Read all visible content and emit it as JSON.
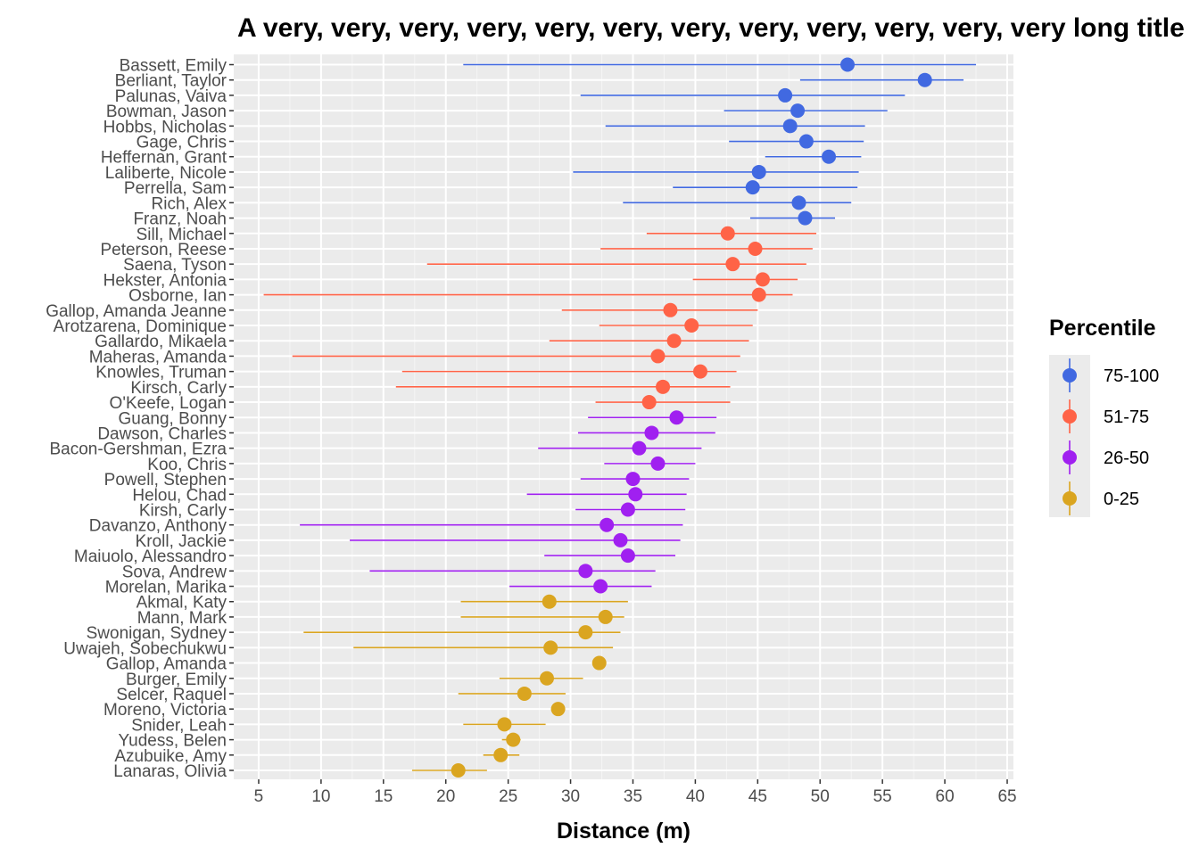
{
  "chart_data": {
    "type": "scatter",
    "title": "A very, very, very, very, very, very, very, very, very, very, very, very long title",
    "xlabel": "Distance (m)",
    "ylabel": "",
    "xlim": [
      3.0,
      65.5
    ],
    "xticks": [
      5,
      10,
      15,
      20,
      25,
      30,
      35,
      40,
      45,
      50,
      55,
      60,
      65
    ],
    "grid": true,
    "legend": {
      "title": "Percentile",
      "position": "right",
      "entries": [
        {
          "label": "75-100",
          "color": "#4169e1"
        },
        {
          "label": "51-75",
          "color": "#ff6347"
        },
        {
          "label": "26-50",
          "color": "#a020f0"
        },
        {
          "label": "0-25",
          "color": "#daa520"
        }
      ]
    },
    "points": [
      {
        "name": "Bassett, Emily",
        "group": "75-100",
        "value": 52.2,
        "low": 21.4,
        "high": 62.5
      },
      {
        "name": "Berliant, Taylor",
        "group": "75-100",
        "value": 58.4,
        "low": 48.4,
        "high": 61.5
      },
      {
        "name": "Palunas, Vaiva",
        "group": "75-100",
        "value": 47.2,
        "low": 30.8,
        "high": 56.8
      },
      {
        "name": "Bowman, Jason",
        "group": "75-100",
        "value": 48.2,
        "low": 42.3,
        "high": 55.4
      },
      {
        "name": "Hobbs, Nicholas",
        "group": "75-100",
        "value": 47.6,
        "low": 32.8,
        "high": 53.6
      },
      {
        "name": "Gage, Chris",
        "group": "75-100",
        "value": 48.9,
        "low": 42.7,
        "high": 53.5
      },
      {
        "name": "Heffernan, Grant",
        "group": "75-100",
        "value": 50.7,
        "low": 45.6,
        "high": 53.3
      },
      {
        "name": "Laliberte, Nicole",
        "group": "75-100",
        "value": 45.1,
        "low": 30.2,
        "high": 53.1
      },
      {
        "name": "Perrella, Sam",
        "group": "75-100",
        "value": 44.6,
        "low": 38.2,
        "high": 53.0
      },
      {
        "name": "Rich, Alex",
        "group": "75-100",
        "value": 48.3,
        "low": 34.2,
        "high": 52.5
      },
      {
        "name": "Franz, Noah",
        "group": "75-100",
        "value": 48.8,
        "low": 44.4,
        "high": 51.2
      },
      {
        "name": "Sill, Michael",
        "group": "51-75",
        "value": 42.6,
        "low": 36.1,
        "high": 49.7
      },
      {
        "name": "Peterson, Reese",
        "group": "51-75",
        "value": 44.8,
        "low": 32.4,
        "high": 49.4
      },
      {
        "name": "Saena, Tyson",
        "group": "51-75",
        "value": 43.0,
        "low": 18.5,
        "high": 48.9
      },
      {
        "name": "Hekster, Antonia",
        "group": "51-75",
        "value": 45.4,
        "low": 39.8,
        "high": 48.2
      },
      {
        "name": "Osborne, Ian",
        "group": "51-75",
        "value": 45.1,
        "low": 5.4,
        "high": 47.8
      },
      {
        "name": "Gallop, Amanda Jeanne",
        "group": "51-75",
        "value": 38.0,
        "low": 29.3,
        "high": 45.0
      },
      {
        "name": "Arotzarena, Dominique",
        "group": "51-75",
        "value": 39.7,
        "low": 32.3,
        "high": 44.6
      },
      {
        "name": "Gallardo, Mikaela",
        "group": "51-75",
        "value": 38.3,
        "low": 28.3,
        "high": 44.3
      },
      {
        "name": "Maheras, Amanda",
        "group": "51-75",
        "value": 37.0,
        "low": 7.7,
        "high": 43.6
      },
      {
        "name": "Knowles, Truman",
        "group": "51-75",
        "value": 40.4,
        "low": 16.5,
        "high": 43.3
      },
      {
        "name": "Kirsch, Carly",
        "group": "51-75",
        "value": 37.4,
        "low": 16.0,
        "high": 42.8
      },
      {
        "name": "O'Keefe, Logan",
        "group": "51-75",
        "value": 36.3,
        "low": 32.0,
        "high": 42.8
      },
      {
        "name": "Guang, Bonny",
        "group": "26-50",
        "value": 38.5,
        "low": 31.4,
        "high": 41.7
      },
      {
        "name": "Dawson, Charles",
        "group": "26-50",
        "value": 36.5,
        "low": 30.6,
        "high": 41.6
      },
      {
        "name": "Bacon-Gershman, Ezra",
        "group": "26-50",
        "value": 35.5,
        "low": 27.4,
        "high": 40.5
      },
      {
        "name": "Koo, Chris",
        "group": "26-50",
        "value": 37.0,
        "low": 32.7,
        "high": 40.0
      },
      {
        "name": "Powell, Stephen",
        "group": "26-50",
        "value": 35.0,
        "low": 30.8,
        "high": 39.5
      },
      {
        "name": "Helou, Chad",
        "group": "26-50",
        "value": 35.2,
        "low": 26.5,
        "high": 39.3
      },
      {
        "name": "Kirsh, Carly",
        "group": "26-50",
        "value": 34.6,
        "low": 30.4,
        "high": 39.2
      },
      {
        "name": "Davanzo, Anthony",
        "group": "26-50",
        "value": 32.9,
        "low": 8.3,
        "high": 39.0
      },
      {
        "name": "Kroll, Jackie",
        "group": "26-50",
        "value": 34.0,
        "low": 12.3,
        "high": 38.8
      },
      {
        "name": "Maiuolo, Alessandro",
        "group": "26-50",
        "value": 34.6,
        "low": 27.9,
        "high": 38.4
      },
      {
        "name": "Sova, Andrew",
        "group": "26-50",
        "value": 31.2,
        "low": 13.9,
        "high": 36.8
      },
      {
        "name": "Morelan, Marika",
        "group": "26-50",
        "value": 32.4,
        "low": 25.1,
        "high": 36.5
      },
      {
        "name": "Akmal, Katy",
        "group": "0-25",
        "value": 28.3,
        "low": 21.2,
        "high": 34.6
      },
      {
        "name": "Mann, Mark",
        "group": "0-25",
        "value": 32.8,
        "low": 21.2,
        "high": 34.3
      },
      {
        "name": "Swonigan, Sydney",
        "group": "0-25",
        "value": 31.2,
        "low": 8.6,
        "high": 34.0
      },
      {
        "name": "Uwajeh, Sobechukwu",
        "group": "0-25",
        "value": 28.4,
        "low": 12.6,
        "high": 33.4
      },
      {
        "name": "Gallop, Amanda",
        "group": "0-25",
        "value": 32.3,
        "low": null,
        "high": null
      },
      {
        "name": "Burger, Emily",
        "group": "0-25",
        "value": 28.1,
        "low": 24.3,
        "high": 31.0
      },
      {
        "name": "Selcer, Raquel",
        "group": "0-25",
        "value": 26.3,
        "low": 21.0,
        "high": 29.6
      },
      {
        "name": "Moreno, Victoria",
        "group": "0-25",
        "value": 29.0,
        "low": null,
        "high": null
      },
      {
        "name": "Snider, Leah",
        "group": "0-25",
        "value": 24.7,
        "low": 21.4,
        "high": 28.0
      },
      {
        "name": "Yudess, Belen",
        "group": "0-25",
        "value": 25.4,
        "low": 24.5,
        "high": 26.0
      },
      {
        "name": "Azubuike, Amy",
        "group": "0-25",
        "value": 24.4,
        "low": 23.0,
        "high": 25.9
      },
      {
        "name": "Lanaras, Olivia",
        "group": "0-25",
        "value": 21.0,
        "low": 17.3,
        "high": 23.3
      }
    ]
  }
}
